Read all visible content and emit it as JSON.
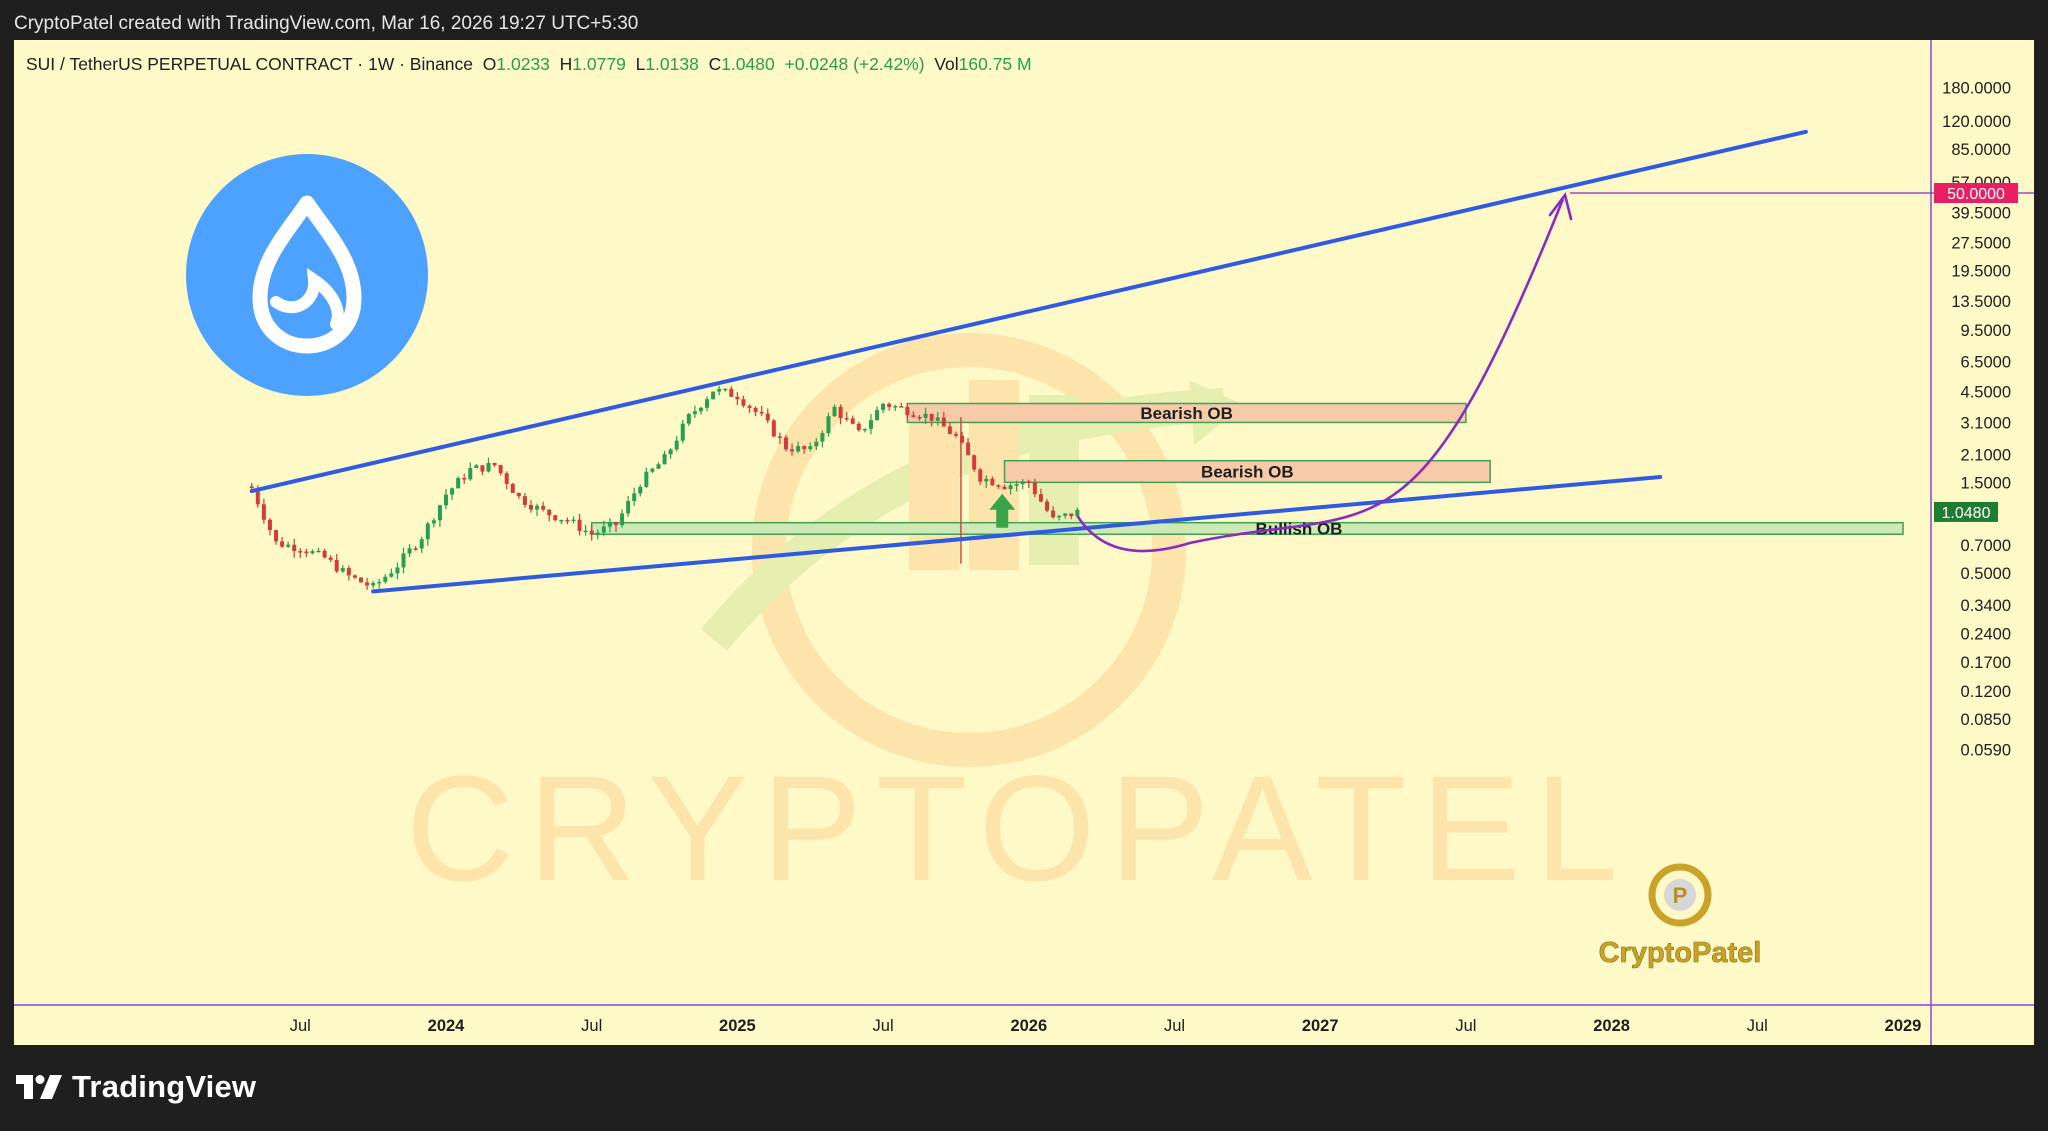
{
  "header": {
    "attribution": "CryptoPatel created with TradingView.com, Mar 16, 2026 19:27 UTC+5:30"
  },
  "footer": {
    "brand": "TradingView"
  },
  "legend": {
    "symbol": "SUI / TetherUS PERPETUAL CONTRACT · 1W · Binance",
    "open_label": "O",
    "open": "1.0233",
    "high_label": "H",
    "high": "1.0779",
    "low_label": "L",
    "low": "1.0138",
    "close_label": "C",
    "close": "1.0480",
    "change": "+0.0248 (+2.42%)",
    "vol_label": "Vol",
    "vol": "160.75 M"
  },
  "watermark": {
    "text": "CRYPTOPATEL",
    "brand": "CryptoPatel"
  },
  "colors": {
    "background": "#fff9c8",
    "channel": "#2f5be0",
    "projection": "#8a2bbf",
    "bearish_zone": "#f8cba8",
    "bullish_zone": "#cfe9b5",
    "target_badge": "#e91e63",
    "price_badge": "#1e7d32",
    "candle_up": "#26a050",
    "candle_down": "#d43c3c",
    "sui_logo": "#4da2ff"
  },
  "chart_data": {
    "type": "candlestick",
    "title": "SUI / TetherUS PERPETUAL CONTRACT · 1W · Binance",
    "y_scale": "log",
    "y_ticks": [
      "180.0000",
      "120.0000",
      "85.0000",
      "57.0000",
      "39.5000",
      "27.5000",
      "19.5000",
      "13.5000",
      "9.5000",
      "6.5000",
      "4.5000",
      "3.1000",
      "2.1000",
      "1.5000",
      "0.7000",
      "0.5000",
      "0.3400",
      "0.2400",
      "0.1700",
      "0.1200",
      "0.0850",
      "0.0590"
    ],
    "x_ticks": [
      "Jul",
      "2024",
      "Jul",
      "2025",
      "Jul",
      "2026",
      "Jul",
      "2027",
      "Jul",
      "2028",
      "Jul",
      "2029"
    ],
    "current_price": "1.0480",
    "target_price": "50.0000",
    "approx_weekly_closes": [
      {
        "date": "2023-05",
        "price": 1.4
      },
      {
        "date": "2023-06",
        "price": 0.72
      },
      {
        "date": "2023-07",
        "price": 0.68
      },
      {
        "date": "2023-08",
        "price": 0.6
      },
      {
        "date": "2023-09",
        "price": 0.48
      },
      {
        "date": "2023-10",
        "price": 0.42
      },
      {
        "date": "2023-11",
        "price": 0.55
      },
      {
        "date": "2023-12",
        "price": 0.78
      },
      {
        "date": "2024-01",
        "price": 1.3
      },
      {
        "date": "2024-02",
        "price": 1.75
      },
      {
        "date": "2024-03",
        "price": 1.85
      },
      {
        "date": "2024-04",
        "price": 1.25
      },
      {
        "date": "2024-05",
        "price": 1.05
      },
      {
        "date": "2024-06",
        "price": 0.95
      },
      {
        "date": "2024-07",
        "price": 0.8
      },
      {
        "date": "2024-08",
        "price": 0.9
      },
      {
        "date": "2024-09",
        "price": 1.5
      },
      {
        "date": "2024-10",
        "price": 2.0
      },
      {
        "date": "2024-11",
        "price": 3.3
      },
      {
        "date": "2024-12",
        "price": 4.6
      },
      {
        "date": "2025-01",
        "price": 4.3
      },
      {
        "date": "2025-02",
        "price": 3.3
      },
      {
        "date": "2025-03",
        "price": 2.3
      },
      {
        "date": "2025-04",
        "price": 2.2
      },
      {
        "date": "2025-05",
        "price": 3.7
      },
      {
        "date": "2025-06",
        "price": 2.7
      },
      {
        "date": "2025-07",
        "price": 3.9
      },
      {
        "date": "2025-08",
        "price": 3.6
      },
      {
        "date": "2025-09",
        "price": 3.3
      },
      {
        "date": "2025-10",
        "price": 2.6
      },
      {
        "date": "2025-11",
        "price": 1.6
      },
      {
        "date": "2025-12",
        "price": 1.45
      },
      {
        "date": "2026-01",
        "price": 1.5
      },
      {
        "date": "2026-02",
        "price": 0.95
      },
      {
        "date": "2026-03",
        "price": 1.048
      }
    ],
    "annotations": [
      {
        "label": "Bearish OB",
        "price_low": 3.1,
        "price_high": 3.9,
        "from": "2025-08",
        "to": "2027-07"
      },
      {
        "label": "Bearish OB",
        "price_low": 1.5,
        "price_high": 1.95,
        "from": "2025-12",
        "to": "2027-08"
      },
      {
        "label": "Bullish OB",
        "price_low": 0.8,
        "price_high": 0.92,
        "from": "2024-07",
        "to": "2029-01"
      }
    ],
    "trendlines": [
      {
        "name": "upper channel",
        "from": {
          "date": "2023-05",
          "price": 1.35
        },
        "to": {
          "date": "2028-09",
          "price": 105
        }
      },
      {
        "name": "lower channel",
        "from": {
          "date": "2023-10",
          "price": 0.4
        },
        "to": {
          "date": "2028-03",
          "price": 1.6
        }
      }
    ],
    "projection": {
      "from": {
        "date": "2026-03",
        "price": 1.0
      },
      "low": {
        "date": "2026-06",
        "price": 0.72
      },
      "to": {
        "date": "2027-11",
        "price": 50
      }
    }
  }
}
